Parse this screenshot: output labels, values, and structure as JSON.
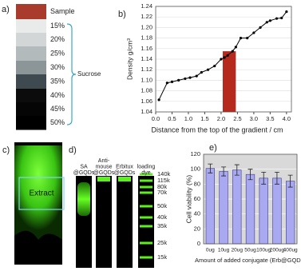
{
  "panel_a": {
    "label": "a)",
    "layers": [
      {
        "name": "Sample",
        "color": "#a83b2b"
      },
      {
        "name": "15%",
        "color": "#e9ebeb"
      },
      {
        "name": "20%",
        "color": "#d2d6d6"
      },
      {
        "name": "25%",
        "color": "#b3babb"
      },
      {
        "name": "30%",
        "color": "#8c9597"
      },
      {
        "name": "35%",
        "color": "#3f4a50"
      },
      {
        "name": "40%",
        "color": "#0c0c0c"
      },
      {
        "name": "45%",
        "color": "#050505"
      },
      {
        "name": "50%",
        "color": "#000000"
      }
    ],
    "bracket_label": "Sucrose"
  },
  "chart_data": [
    {
      "type": "line",
      "panel_label": "b)",
      "ylabel": "Density g/cm³",
      "xlabel": "Distance from the top of the gradient / cm",
      "x": [
        0.1,
        0.35,
        0.5,
        0.7,
        0.9,
        1.05,
        1.25,
        1.4,
        1.6,
        1.8,
        2.0,
        2.1,
        2.2,
        2.35,
        2.45,
        2.6,
        2.8,
        3.0,
        3.2,
        3.4,
        3.5,
        3.7,
        3.85,
        4.0
      ],
      "values": [
        1.063,
        1.095,
        1.097,
        1.1,
        1.103,
        1.105,
        1.108,
        1.115,
        1.12,
        1.127,
        1.14,
        1.143,
        1.147,
        1.155,
        1.163,
        1.18,
        1.18,
        1.19,
        1.2,
        1.21,
        1.213,
        1.217,
        1.218,
        1.23
      ],
      "color": "#000000",
      "highlight": {
        "x": [
          2.05,
          2.45
        ],
        "y": 1.155,
        "color": "#b52a1c"
      },
      "xlim": [
        0,
        4.15
      ],
      "ylim": [
        1.04,
        1.24
      ],
      "xticks": [
        {
          "value": 0,
          "label": "0.0"
        },
        0.5,
        {
          "value": 1,
          "label": "1.0"
        },
        1.5,
        {
          "value": 2,
          "label": "2.0"
        },
        2.5,
        {
          "value": 3,
          "label": "3.0"
        },
        3.5,
        {
          "value": 4,
          "label": "4.0"
        }
      ],
      "yticks": [
        1.04,
        1.06,
        1.08,
        {
          "value": 1.1,
          "label": "1.10"
        },
        1.12,
        1.14,
        1.16,
        1.18,
        {
          "value": 1.2,
          "label": "1.20"
        },
        1.22,
        1.24
      ],
      "grid": true
    },
    {
      "type": "bar",
      "panel_label": "e)",
      "ylabel": "Cell viability (%)",
      "xlabel": "Amount of added conjugate (Erb@GQDs)",
      "categories": [
        "0ug",
        "10ug",
        "20ug",
        "50ug",
        "100ug",
        "200ug",
        "400ug"
      ],
      "values": [
        101,
        97,
        99,
        93,
        88,
        88,
        84
      ],
      "errors": [
        6,
        6,
        7,
        7,
        8,
        8,
        8
      ],
      "color": "#a9a9f2",
      "background": "#d9d9d9",
      "ylim": [
        0,
        120
      ],
      "yticks": [
        0,
        20,
        40,
        60,
        80,
        100,
        120
      ],
      "grid": true
    }
  ],
  "panel_c": {
    "label": "c)",
    "box_label": "Extract"
  },
  "panel_d": {
    "label": "d)",
    "lanes": [
      [
        "SA",
        "@GQDs"
      ],
      [
        "Anti-",
        "mouse",
        "@GQDs"
      ],
      [
        "Erbitux",
        "@GQDs"
      ],
      [
        "loading",
        "dye"
      ]
    ],
    "markers": [
      "140k",
      "115k",
      "80k",
      "70k",
      "50k",
      "40k",
      "35k",
      "25k",
      "15k"
    ]
  }
}
